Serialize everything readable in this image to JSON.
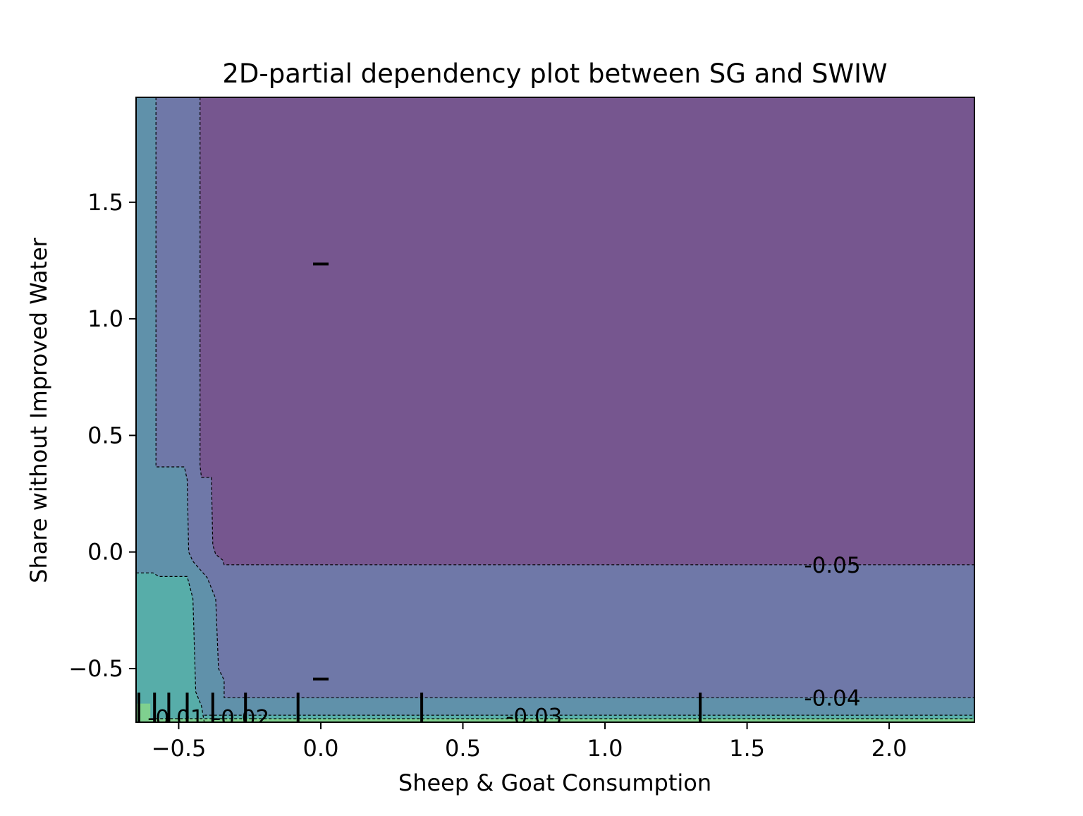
{
  "chart_data": {
    "type": "heatmap",
    "subtype": "2D partial dependence contour",
    "title": "2D-partial dependency plot between SG and SWIW",
    "xlabel": "Sheep & Goat Consumption",
    "ylabel": "Share without Improved Water",
    "xlim": [
      -0.65,
      2.3
    ],
    "ylim": [
      -0.73,
      1.95
    ],
    "xticks": [
      -0.5,
      0.0,
      0.5,
      1.0,
      1.5,
      2.0
    ],
    "xtick_labels": [
      "−0.5",
      "0.0",
      "0.5",
      "1.0",
      "1.5",
      "2.0"
    ],
    "yticks": [
      -0.5,
      0.0,
      0.5,
      1.0,
      1.5
    ],
    "ytick_labels": [
      "−0.5",
      "0.0",
      "0.5",
      "1.0",
      "1.5"
    ],
    "grid": false,
    "colormap": "viridis",
    "region_colors": {
      "lowest": "#76568f",
      "low": "#6f78a8",
      "mid": "#6091aa",
      "high": "#57ada9",
      "highest": "#7fd08f"
    },
    "contour_levels": [
      {
        "label": "-0.05",
        "x": 1.8,
        "y": -0.055
      },
      {
        "label": "-0.04",
        "x": 1.8,
        "y": -0.625
      },
      {
        "label": "-0.03",
        "x": 0.75,
        "y": -0.705
      },
      {
        "label": "-0.02",
        "x": -0.28,
        "y": -0.71
      },
      {
        "label": "-0.01",
        "x": -0.51,
        "y": -0.71
      }
    ],
    "x_deciles": [
      -0.64,
      -0.585,
      -0.535,
      -0.47,
      -0.38,
      -0.265,
      -0.08,
      0.355,
      1.335
    ],
    "y_deciles": [
      1.235,
      -0.545
    ]
  }
}
